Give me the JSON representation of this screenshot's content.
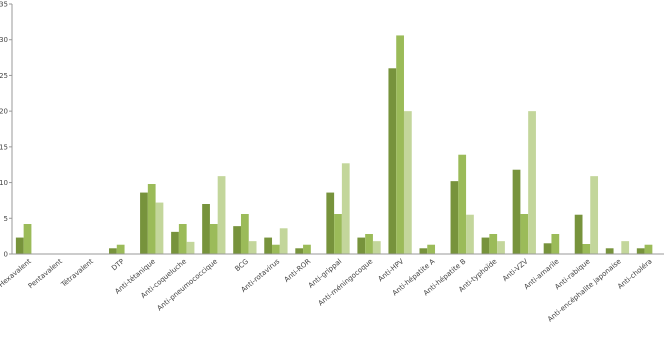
{
  "chart_data": {
    "type": "bar",
    "categories": [
      "Hexavalent",
      "Pentavalent",
      "Tétravalent",
      "DTP",
      "Anti-tétanique",
      "Anti-coqueluche",
      "Anti-pneumococcique",
      "BCG",
      "Anti-rotavirus",
      "Anti-ROR",
      "Anti-grippal",
      "Anti-méningocoque",
      "Anti-HPV",
      "Anti-hépatite A",
      "Anti-hépatite B",
      "Anti-typhoïde",
      "Anti-VZV",
      "Anti-amarile",
      "Anti-rabique",
      "Anti-encéphalite japonaise",
      "Anti-choléra"
    ],
    "series": [
      {
        "color": "#77933c",
        "values": [
          2.3,
          0,
          0,
          0.8,
          8.6,
          3.1,
          7.0,
          3.9,
          2.3,
          0.8,
          8.6,
          2.3,
          26,
          0.8,
          10.2,
          2.3,
          11.8,
          1.5,
          5.5,
          0.8,
          0.8
        ]
      },
      {
        "color": "#9bbb59",
        "values": [
          4.2,
          0,
          0,
          1.3,
          9.8,
          4.2,
          4.2,
          5.6,
          1.3,
          1.3,
          5.6,
          2.8,
          30.6,
          1.3,
          13.9,
          2.8,
          5.6,
          2.8,
          1.4,
          0,
          1.3
        ]
      },
      {
        "color": "#c3d69b",
        "values": [
          0,
          0,
          0,
          0,
          7.2,
          1.7,
          10.9,
          1.8,
          3.6,
          0,
          12.7,
          1.8,
          20,
          0,
          5.5,
          1.8,
          20,
          0,
          10.9,
          1.8,
          0
        ]
      }
    ],
    "ylim": [
      0,
      35
    ],
    "yticks": [
      0,
      5,
      10,
      15,
      20,
      25,
      30,
      35
    ],
    "grid": false
  }
}
